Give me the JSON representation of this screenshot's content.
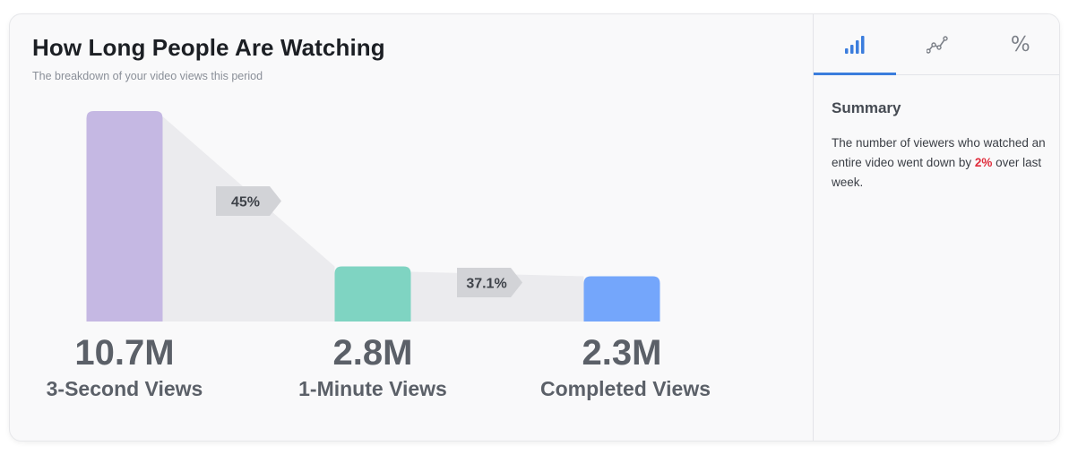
{
  "header": {
    "title": "How Long People Are Watching",
    "subtitle": "The breakdown of your video views this period"
  },
  "chart_data": {
    "type": "bar",
    "subtype": "funnel",
    "categories": [
      "3-Second Views",
      "1-Minute Views",
      "Completed Views"
    ],
    "values": [
      10.7,
      2.8,
      2.3
    ],
    "value_labels": [
      "10.7M",
      "2.8M",
      "2.3M"
    ],
    "unit": "M",
    "drop_labels": [
      "45%",
      "37.1%"
    ],
    "colors": [
      "#c5b8e3",
      "#7fd4c2",
      "#74a6fb"
    ],
    "connector_color": "#ebebee",
    "drop_tag_color": "#d2d3d7"
  },
  "sidebar": {
    "tabs": [
      {
        "icon": "bar-chart-icon",
        "active": true
      },
      {
        "icon": "line-chart-icon",
        "active": false
      },
      {
        "icon": "percent-icon",
        "label": "%",
        "active": false
      }
    ],
    "summary_title": "Summary",
    "summary_pre": "The number of viewers who watched an entire video went down by ",
    "summary_highlight": "2%",
    "summary_post": " over last week.",
    "accent_color": "#3b7ddd",
    "highlight_color": "#e02d3c"
  }
}
